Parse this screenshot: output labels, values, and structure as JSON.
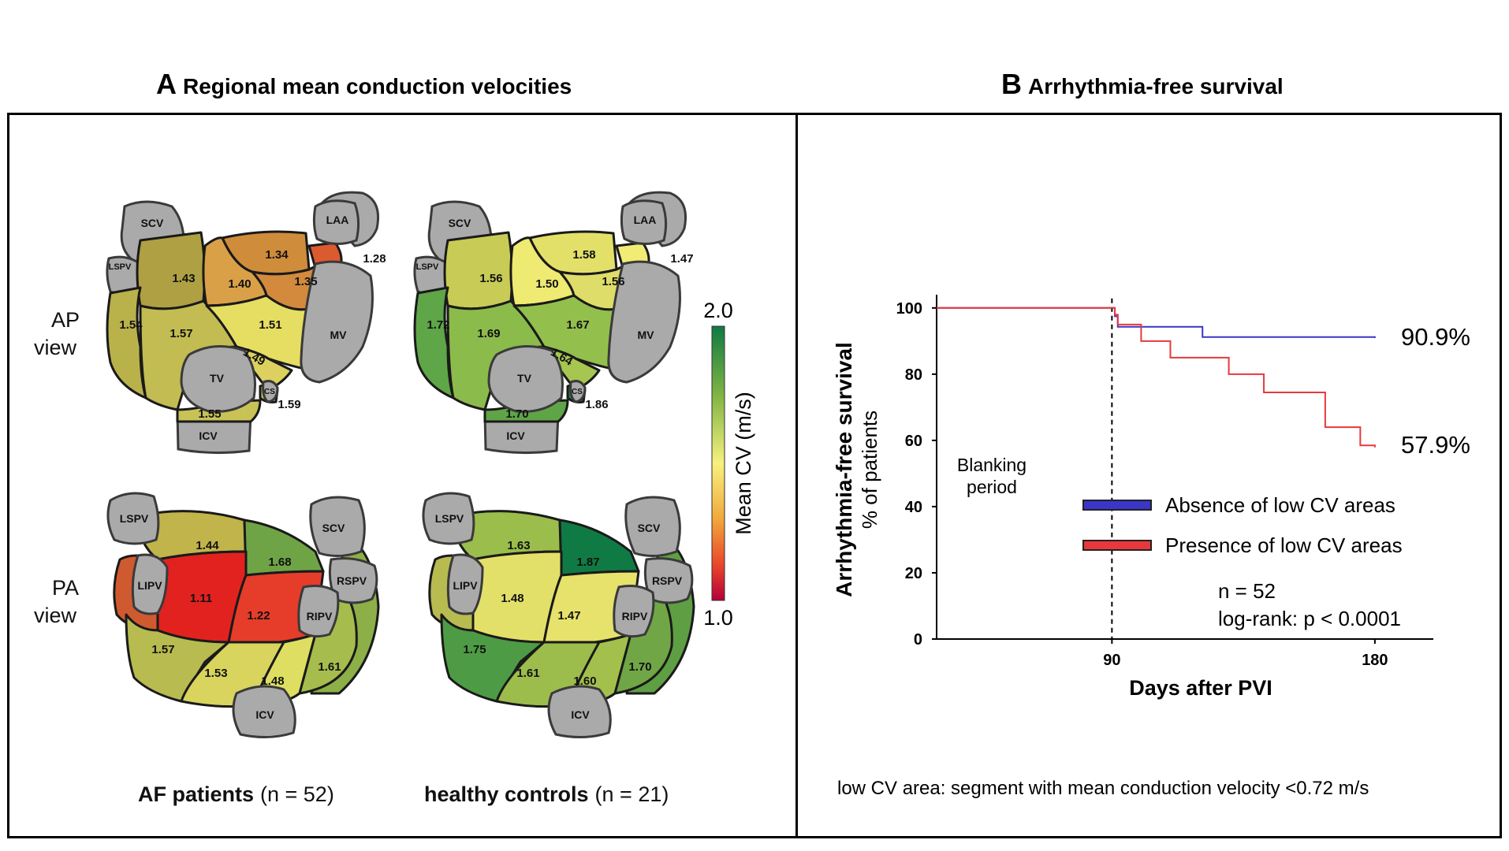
{
  "panel_a": {
    "letter": "A",
    "title": "Regional mean conduction velocities",
    "rows": {
      "ap_line1": "AP",
      "ap_line2": "view",
      "pa_line1": "PA",
      "pa_line2": "view"
    },
    "groups": {
      "af_bold": "AF patients",
      "af_n": "(n = 52)",
      "hc_bold": "healthy controls",
      "hc_n": "(n = 21)"
    },
    "vessels": {
      "scv": "SCV",
      "laa": "LAA",
      "lspv": "LSPV",
      "mv": "MV",
      "tv": "TV",
      "cs": "CS",
      "icv": "ICV",
      "lipv": "LIPV",
      "ripv": "RIPV",
      "rspv": "RSPV"
    },
    "af_ap": {
      "s1": "1.43",
      "s2": "1.34",
      "s3": "1.40",
      "s4": "1.35",
      "s5": "1.28",
      "s6": "1.54",
      "s7": "1.57",
      "s8": "1.51",
      "s9": "1.49",
      "s10": "1.55",
      "s11": "1.59"
    },
    "hc_ap": {
      "s1": "1.56",
      "s2": "1.58",
      "s3": "1.50",
      "s4": "1.56",
      "s5": "1.47",
      "s6": "1.72",
      "s7": "1.69",
      "s8": "1.67",
      "s9": "1.64",
      "s10": "1.70",
      "s11": "1.86"
    },
    "af_pa": {
      "s1": "1.44",
      "s2": "1.68",
      "s3": "1.11",
      "s4": "1.22",
      "s5": "1.57",
      "s6": "1.53",
      "s7": "1.48",
      "s8": "1.61"
    },
    "hc_pa": {
      "s1": "1.63",
      "s2": "1.87",
      "s3": "1.48",
      "s4": "1.47",
      "s5": "1.75",
      "s6": "1.61",
      "s7": "1.60",
      "s8": "1.70"
    },
    "colorbar": {
      "max": "2.0",
      "min": "1.0",
      "label": "Mean CV (m/s)",
      "colors": [
        "#0e7a43",
        "#7fb443",
        "#f6f17e",
        "#f2a93c",
        "#e8412a",
        "#b4003a"
      ]
    }
  },
  "panel_b": {
    "letter": "B",
    "title": "Arrhythmia-free survival",
    "footnote": "low CV area: segment with mean conduction velocity <0.72 m/s",
    "blanking_line1": "Blanking",
    "blanking_line2": "period",
    "stats_line1": "n = 52",
    "stats_line2": "log-rank: p < 0.0001",
    "end_label_absence": "90.9%",
    "end_label_presence": "57.9%"
  },
  "chart_data": {
    "type": "line",
    "title": "Arrhythmia-free survival",
    "xlabel": "Days after PVI",
    "ylabel": "Arrhythmia-free survival",
    "ylabel_sub": "% of patients",
    "xlim": [
      30,
      200
    ],
    "ylim": [
      0,
      104
    ],
    "xticks": [
      90,
      180
    ],
    "yticks": [
      0,
      20,
      40,
      60,
      80,
      100
    ],
    "step": true,
    "grid": false,
    "legend_position": "center-right",
    "reference_line_x": 90,
    "series": [
      {
        "name": "Absence of low CV areas",
        "color": "#3b35c8",
        "x": [
          30,
          90,
          91,
          92,
          121,
          180
        ],
        "y": [
          100,
          100,
          97.5,
          94.3,
          91.2,
          90.9
        ]
      },
      {
        "name": "Presence of low CV areas",
        "color": "#e8383b",
        "x": [
          30,
          90,
          91,
          92,
          100,
          110,
          130,
          142,
          163,
          175,
          180
        ],
        "y": [
          100,
          100,
          98,
          95,
          90,
          85,
          80,
          74.5,
          64,
          58.5,
          57.9
        ]
      }
    ]
  }
}
